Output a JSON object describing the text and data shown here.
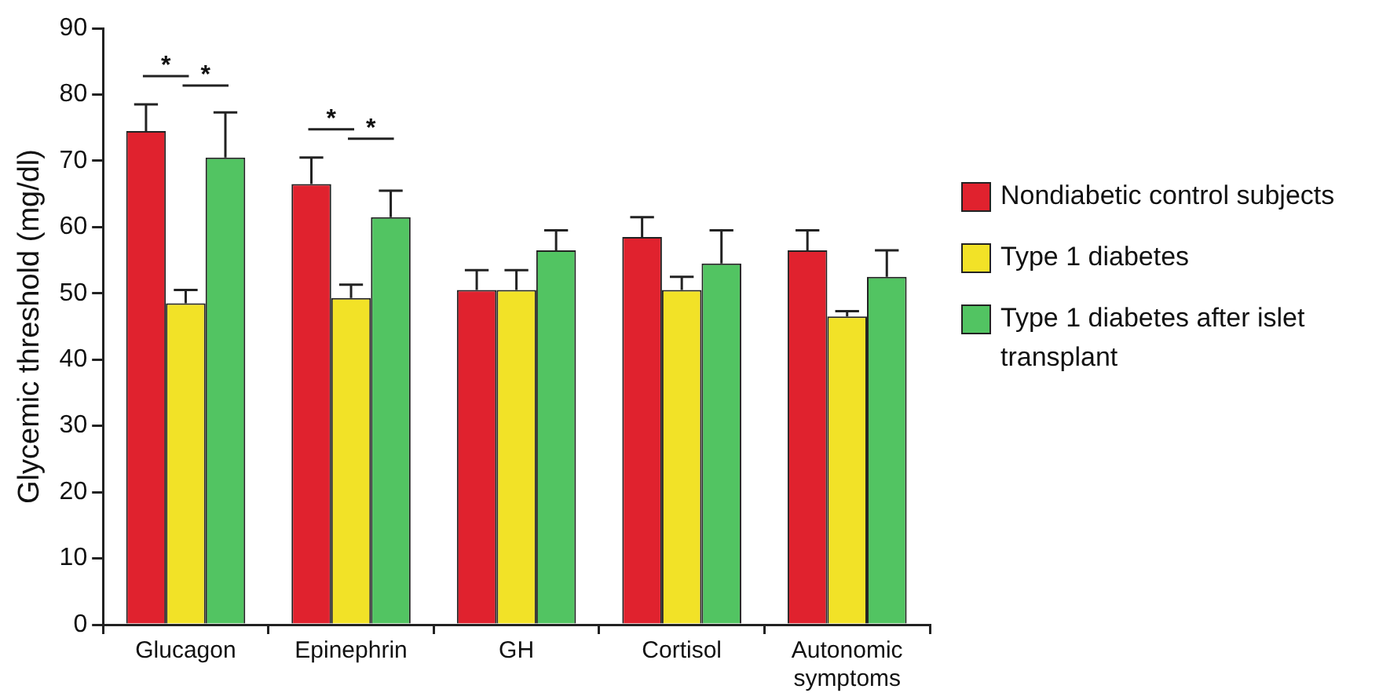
{
  "chart_data": {
    "type": "bar",
    "ylabel": "Glycemic threshold (mg/dl)",
    "categories": [
      "Glucagon",
      "Epinephrin",
      "GH",
      "Cortisol",
      "Autonomic symptoms"
    ],
    "series": [
      {
        "name": "Nondiabetic control subjects",
        "color": "#e0222e",
        "values": [
          74.5,
          66.5,
          50.5,
          58.5,
          56.5
        ],
        "errors": [
          [
            74.5,
            78.5
          ],
          [
            66.5,
            70.5
          ],
          [
            50.5,
            53.5
          ],
          [
            58.5,
            61.5
          ],
          [
            56.5,
            59.5
          ]
        ]
      },
      {
        "name": "Type 1 diabetes",
        "color": "#f2e227",
        "values": [
          48.5,
          49.3,
          50.5,
          50.5,
          46.5
        ],
        "errors": [
          [
            48.5,
            50.5
          ],
          [
            49.3,
            51.3
          ],
          [
            50.5,
            53.5
          ],
          [
            50.5,
            52.5
          ],
          [
            46.5,
            47.3
          ]
        ]
      },
      {
        "name": "Type 1 diabetes after islet transplant",
        "color": "#52c462",
        "values": [
          70.5,
          61.5,
          56.5,
          54.5,
          52.5
        ],
        "errors": [
          [
            70.5,
            77.3
          ],
          [
            61.5,
            65.5
          ],
          [
            56.5,
            59.5
          ],
          [
            54.5,
            59.5
          ],
          [
            52.5,
            56.5
          ]
        ]
      }
    ],
    "ylim": [
      0,
      90
    ],
    "yticks": [
      0,
      10,
      20,
      30,
      40,
      50,
      60,
      70,
      80,
      90
    ],
    "grid": false,
    "legend": "right",
    "annotations": [
      "*",
      "*",
      "*",
      "*"
    ]
  }
}
